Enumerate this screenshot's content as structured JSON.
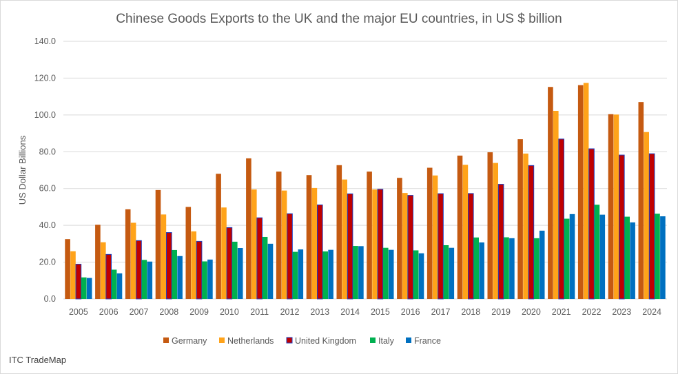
{
  "chart_data": {
    "type": "bar",
    "title": "Chinese Goods Exports to the UK and the major EU countries, in US $ billion",
    "xlabel": "",
    "ylabel": "US Dollar Billions",
    "ylim": [
      0,
      140
    ],
    "yticks": [
      "0.0",
      "20.0",
      "40.0",
      "60.0",
      "80.0",
      "100.0",
      "120.0",
      "140.0"
    ],
    "grid": true,
    "legend_position": "bottom",
    "categories": [
      "2005",
      "2006",
      "2007",
      "2008",
      "2009",
      "2010",
      "2011",
      "2012",
      "2013",
      "2014",
      "2015",
      "2016",
      "2017",
      "2018",
      "2019",
      "2020",
      "2021",
      "2022",
      "2023",
      "2024"
    ],
    "series": [
      {
        "name": "Germany",
        "color": "#c55a11",
        "edge": "#c55a11",
        "values": [
          32.5,
          40.3,
          48.7,
          59.2,
          50.0,
          68.0,
          76.4,
          69.2,
          67.3,
          72.7,
          69.2,
          65.8,
          71.3,
          77.9,
          79.7,
          86.8,
          115.2,
          116.2,
          100.4,
          107.0
        ]
      },
      {
        "name": "Netherlands",
        "color": "#ffa31a",
        "edge": "#ffa31a",
        "values": [
          25.9,
          30.8,
          41.4,
          45.9,
          36.7,
          49.7,
          59.5,
          58.9,
          60.3,
          64.9,
          59.5,
          57.6,
          67.1,
          72.9,
          73.9,
          79.0,
          102.2,
          117.4,
          100.2,
          90.7
        ]
      },
      {
        "name": "United Kingdom",
        "color": "#c00000",
        "edge": "#1f3fbf",
        "values": [
          18.9,
          24.2,
          31.7,
          36.1,
          31.3,
          38.8,
          44.1,
          46.3,
          51.1,
          57.1,
          59.6,
          56.3,
          57.2,
          57.3,
          62.3,
          72.5,
          86.9,
          81.6,
          78.2,
          78.9
        ]
      },
      {
        "name": "Italy",
        "color": "#00b050",
        "edge": "#00b050",
        "values": [
          11.7,
          15.9,
          21.2,
          26.6,
          20.4,
          31.1,
          33.7,
          25.6,
          25.8,
          28.8,
          27.8,
          26.4,
          29.2,
          33.4,
          33.5,
          33.0,
          43.6,
          51.2,
          44.7,
          46.3
        ]
      },
      {
        "name": "France",
        "color": "#0070c0",
        "edge": "#0070c0",
        "values": [
          11.4,
          13.9,
          20.3,
          23.3,
          21.4,
          27.7,
          30.0,
          26.9,
          26.7,
          28.7,
          26.7,
          24.8,
          27.8,
          30.7,
          33.0,
          37.1,
          46.1,
          45.8,
          41.6,
          44.9
        ]
      }
    ]
  },
  "source_label": "ITC TradeMap"
}
